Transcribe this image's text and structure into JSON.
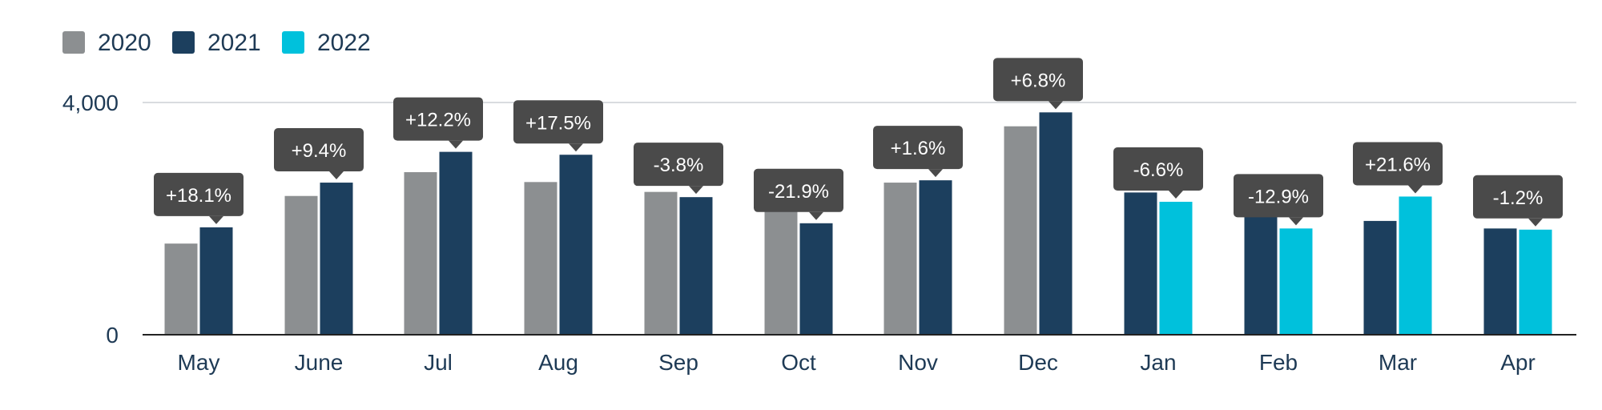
{
  "chart_data": {
    "type": "bar",
    "categories": [
      "May",
      "June",
      "Jul",
      "Aug",
      "Sep",
      "Oct",
      "Nov",
      "Dec",
      "Jan",
      "Feb",
      "Mar",
      "Apr"
    ],
    "series": [
      {
        "name": "2020",
        "color": "#8c8f91",
        "values": [
          1570,
          2390,
          2800,
          2630,
          2460,
          2460,
          2620,
          3590,
          null,
          null,
          null,
          null
        ]
      },
      {
        "name": "2021",
        "color": "#1c3f5e",
        "values": [
          1850,
          2620,
          3150,
          3100,
          2370,
          1920,
          2660,
          3830,
          2450,
          2100,
          1960,
          1830
        ]
      },
      {
        "name": "2022",
        "color": "#00c1dc",
        "values": [
          null,
          null,
          null,
          null,
          null,
          null,
          null,
          null,
          2290,
          1830,
          2380,
          1810
        ]
      }
    ],
    "change_labels": [
      "+18.1%",
      "+9.4%",
      "+12.2%",
      "+17.5%",
      "-3.8%",
      "-21.9%",
      "+1.6%",
      "+6.8%",
      "-6.6%",
      "-12.9%",
      "+21.6%",
      "-1.2%"
    ],
    "ytick_labels": [
      "0",
      "4,000"
    ],
    "yticks": [
      0,
      4000
    ],
    "ylim": [
      0,
      4000
    ],
    "legend_position": "top-left",
    "grid": true
  }
}
